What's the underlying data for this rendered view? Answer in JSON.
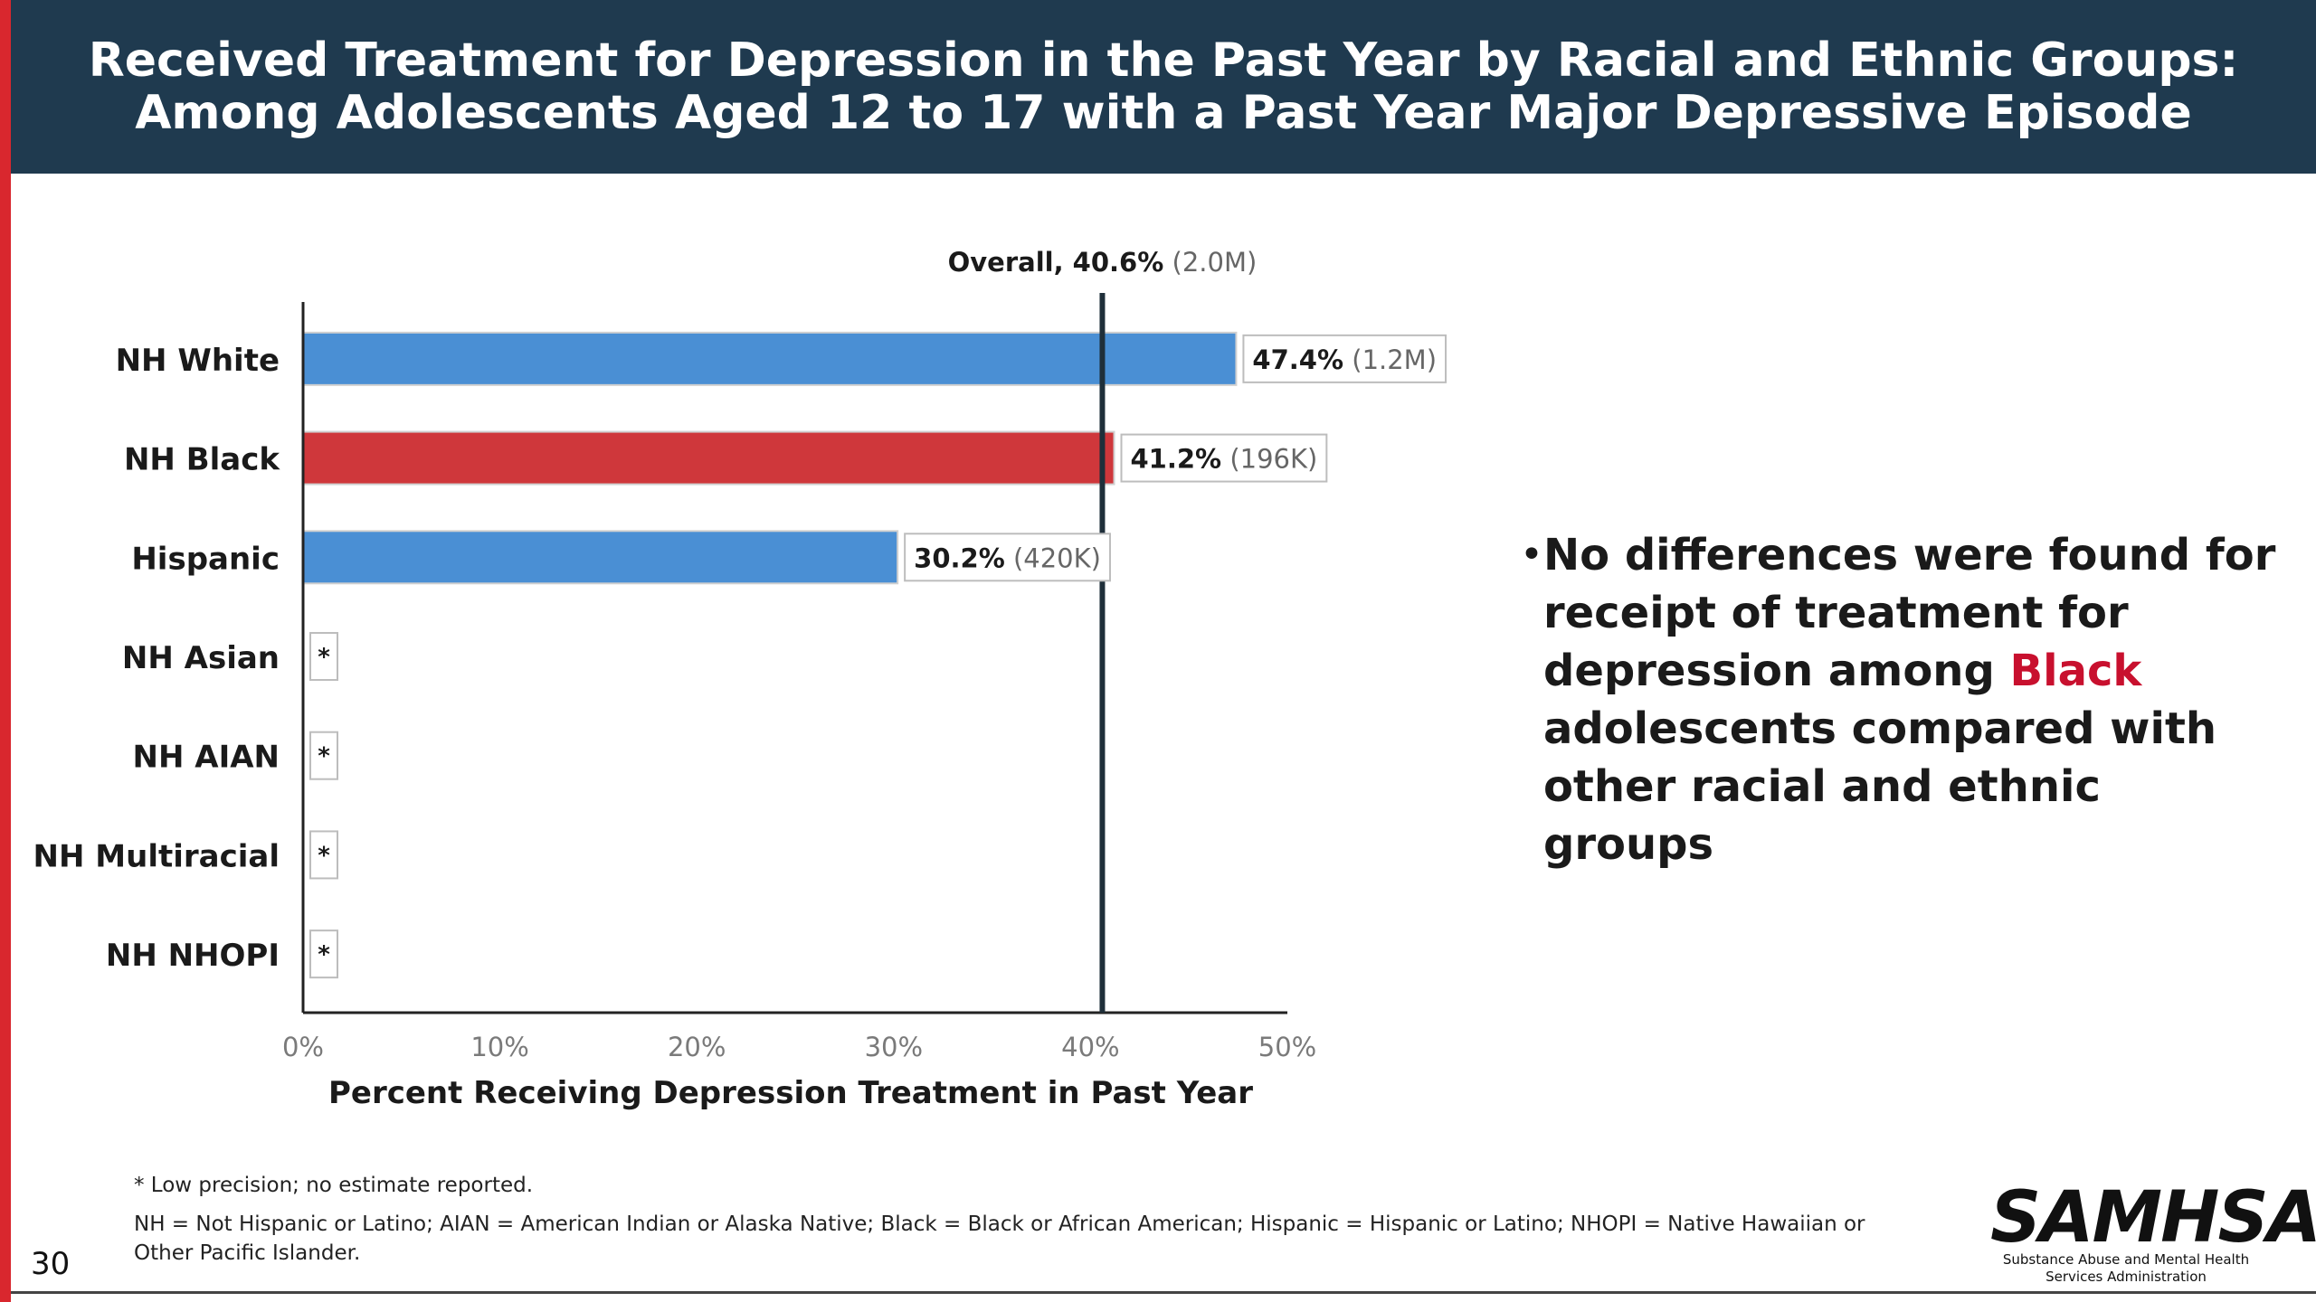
{
  "slide": {
    "title": "Received Treatment for Depression in the Past Year by Racial and Ethnic Groups: Among Adolescents Aged 12 to 17 with a Past Year Major Depressive Episode",
    "page_number": "30",
    "accent_color": "#d9272e",
    "title_band_color": "#1f3a4f"
  },
  "chart_data": {
    "type": "bar",
    "orientation": "horizontal",
    "categories": [
      "NH White",
      "NH Black",
      "Hispanic",
      "NH Asian",
      "NH AIAN",
      "NH Multiracial",
      "NH NHOPI"
    ],
    "values": [
      47.4,
      41.2,
      30.2,
      null,
      null,
      null,
      null
    ],
    "label_value": [
      "47.4%",
      "41.2%",
      "30.2%",
      "*",
      "*",
      "*",
      "*"
    ],
    "label_count": [
      "(1.2M)",
      "(196K)",
      "(420K)",
      "",
      "",
      "",
      ""
    ],
    "bar_colors": [
      "#4a8fd4",
      "#cf373b",
      "#4a8fd4",
      "#4a8fd4",
      "#4a8fd4",
      "#4a8fd4",
      "#4a8fd4"
    ],
    "xlabel": "Percent Receiving Depression Treatment in Past Year",
    "ylabel": "",
    "xlim": [
      0,
      50
    ],
    "xticks": [
      0,
      10,
      20,
      30,
      40,
      50
    ],
    "xtick_labels": [
      "0%",
      "10%",
      "20%",
      "30%",
      "40%",
      "50%"
    ],
    "grid": false,
    "reference_line": {
      "value": 40.6,
      "label_main": "Overall, 40.6%",
      "label_count": "(2.0M)"
    }
  },
  "bullet": {
    "text_before": "No differences were found for receipt of treatment for depression among ",
    "highlight": "Black",
    "text_after": " adolescents compared with other racial and ethnic groups",
    "highlight_color": "#c8102e"
  },
  "footnotes": {
    "low_precision": "* Low precision; no estimate reported.",
    "abbreviations": "NH = Not Hispanic or Latino; AIAN = American Indian or Alaska Native; Black = Black or African American; Hispanic = Hispanic or Latino; NHOPI = Native Hawaiian or Other Pacific Islander."
  },
  "logo": {
    "wordmark": "SAMHSA",
    "subtitle": "Substance Abuse and Mental Health Services Administration"
  }
}
